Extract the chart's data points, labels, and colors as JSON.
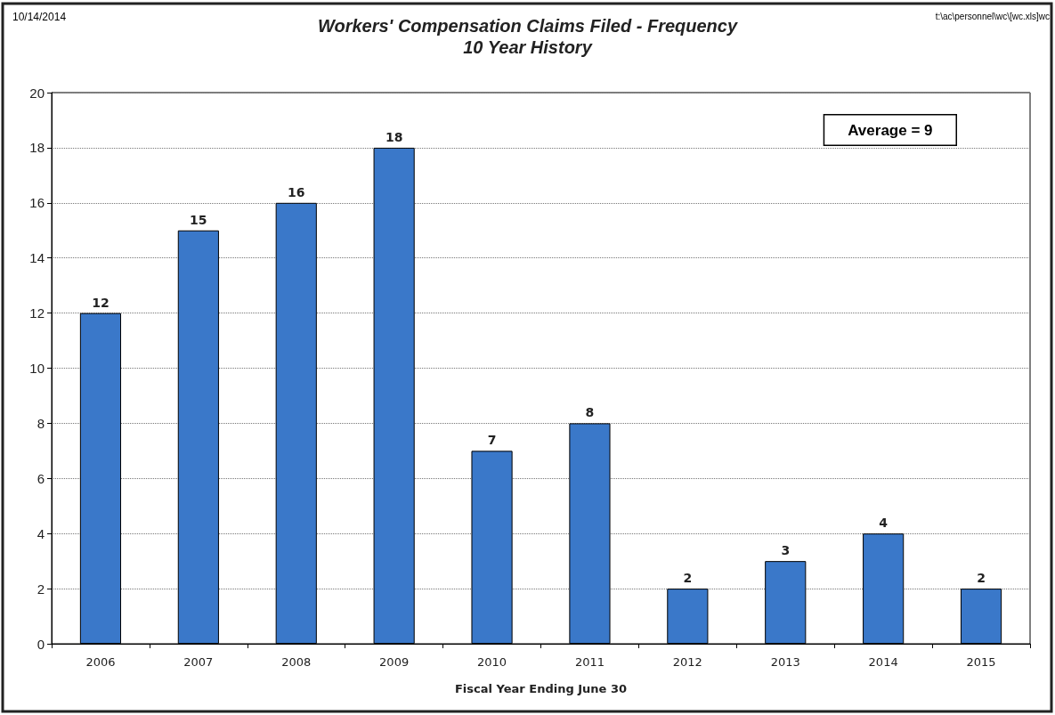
{
  "chart_data": {
    "type": "bar",
    "title": "Workers' Compensation Claims Filed - Frequency",
    "subtitle": "10 Year History",
    "xlabel": "Fiscal Year Ending June 30",
    "categories": [
      "2006",
      "2007",
      "2008",
      "2009",
      "2010",
      "2011",
      "2012",
      "2013",
      "2014",
      "2015"
    ],
    "values": [
      12,
      15,
      16,
      18,
      7,
      8,
      2,
      3,
      4,
      2
    ],
    "color": "#3a78c9",
    "ylim": [
      0,
      20
    ],
    "yticks": [
      0,
      2,
      4,
      6,
      8,
      10,
      12,
      14,
      16,
      18,
      20
    ],
    "grid": "y",
    "data_labels": true,
    "annotations": [
      "10/14/2014",
      "t:\\ac\\personnel\\wc\\[wc.xls]wc",
      "Average = 9"
    ]
  }
}
